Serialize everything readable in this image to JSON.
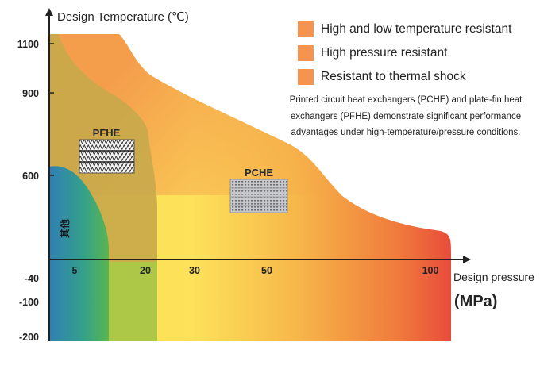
{
  "y_axis": {
    "title": "Design Temperature (℃)",
    "ticks": [
      "1100",
      "900",
      "600",
      "-40",
      "-100",
      "-200"
    ]
  },
  "x_axis": {
    "title": "Design pressure",
    "unit": "(MPa)",
    "ticks": [
      "5",
      "20",
      "30",
      "50",
      "100"
    ]
  },
  "legend": [
    {
      "label": "High and low temperature resistant"
    },
    {
      "label": "High pressure resistant"
    },
    {
      "label": "Resistant to thermal shock"
    }
  ],
  "note": "Printed circuit heat exchangers (PCHE) and plate-fin heat exchangers (PFHE) demonstrate significant performance advantages under high-temperature/pressure conditions.",
  "regions": {
    "pfhe_label": "PFHE",
    "pche_label": "PCHE",
    "other_label": "其他"
  },
  "colors": {
    "legend_swatch": "#f5934f",
    "other_region": "#2e86b0",
    "pfhe_region": "#c8a84a",
    "gradient_start": "#fbe44f",
    "gradient_end": "#e8443a"
  },
  "icons": [
    "pfhe-exchanger-image",
    "pche-exchanger-image"
  ]
}
